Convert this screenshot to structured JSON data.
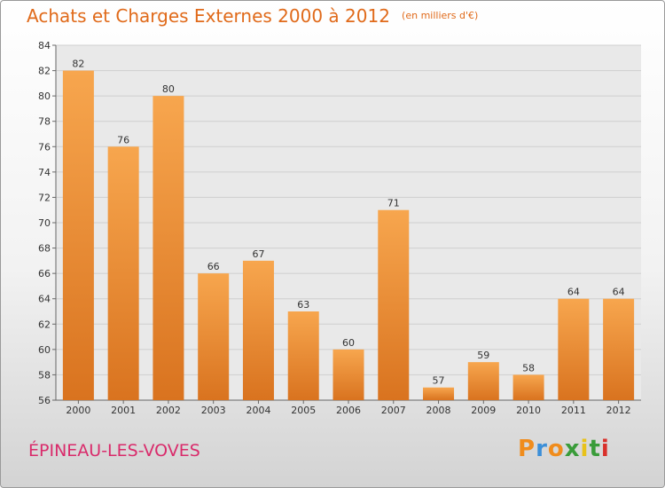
{
  "chart_data": {
    "type": "bar",
    "title": "Achats et Charges Externes 2000 à 2012",
    "subtitle": "(en milliers d'€)",
    "categories": [
      "2000",
      "2001",
      "2002",
      "2003",
      "2004",
      "2005",
      "2006",
      "2007",
      "2008",
      "2009",
      "2010",
      "2011",
      "2012"
    ],
    "values": [
      82,
      76,
      80,
      66,
      67,
      63,
      60,
      71,
      57,
      59,
      58,
      64,
      64
    ],
    "ylim": [
      56,
      84
    ],
    "yticks": [
      56,
      58,
      60,
      62,
      64,
      66,
      68,
      70,
      72,
      74,
      76,
      78,
      80,
      82,
      84
    ],
    "grid": true,
    "bar_color": "#f0923a"
  },
  "footer": {
    "commune": "ÉPINEAU-LES-VOVES"
  },
  "logo": {
    "letters": [
      "P",
      "r",
      "o",
      "x",
      "i",
      "t",
      "i"
    ],
    "colors": [
      "#f08c1c",
      "#3c8fd8",
      "#f08c1c",
      "#3a9c3a",
      "#e8c21a",
      "#3a9c3a",
      "#d9302b"
    ]
  }
}
